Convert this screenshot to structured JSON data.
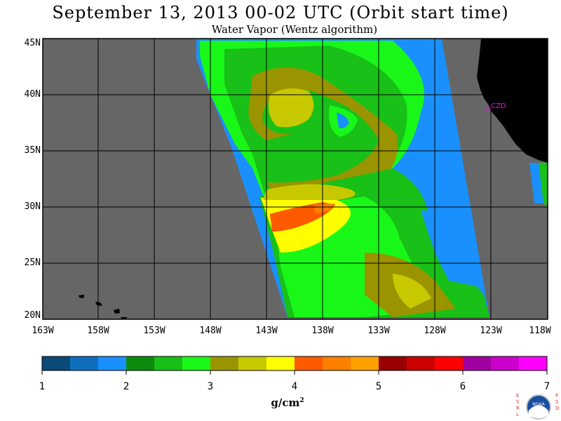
{
  "title": "September 13, 2013  00-02 UTC  (Orbit start time)",
  "subtitle": "Water Vapor (Wentz algorithm)",
  "map": {
    "lat_labels": [
      "45N",
      "40N",
      "35N",
      "30N",
      "25N",
      "20N"
    ],
    "lon_labels": [
      "163W",
      "158W",
      "153W",
      "148W",
      "143W",
      "138W",
      "133W",
      "128W",
      "123W",
      "118W"
    ],
    "station_label": "CZD",
    "no_data_color": "#666666",
    "land_color": "#000000",
    "station_color": "#ff00ff"
  },
  "colorbar": {
    "tick_labels": [
      "1",
      "2",
      "3",
      "4",
      "5",
      "6",
      "7"
    ],
    "units": "g/cm",
    "units_exp": "2",
    "colors": [
      "#0a4a78",
      "#0f6fbf",
      "#1a90ff",
      "#0c8c0c",
      "#18c018",
      "#19f719",
      "#9a9400",
      "#c8c800",
      "#ffff00",
      "#ff5a00",
      "#ff7f00",
      "#ffa000",
      "#990000",
      "#cc0000",
      "#ff0000",
      "#a000a0",
      "#cc00cc",
      "#ff00ff"
    ]
  },
  "logo": {
    "left_letters": [
      "E",
      "S",
      "R",
      "L"
    ],
    "right_letters": [
      "P",
      "S",
      "D"
    ],
    "text": "NOAA"
  }
}
